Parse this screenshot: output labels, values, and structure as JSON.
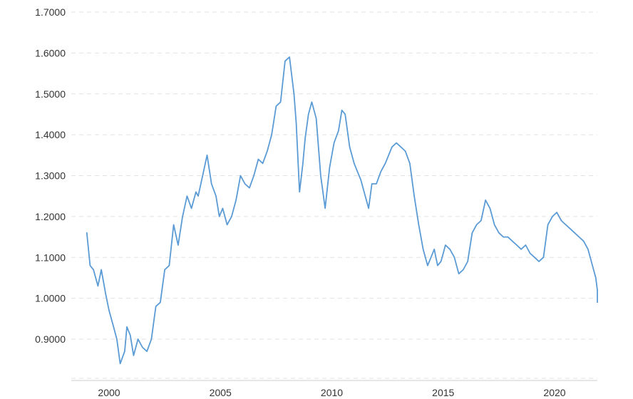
{
  "chart_data": {
    "type": "line",
    "title": "",
    "xlabel": "",
    "ylabel": "",
    "grid": true,
    "legend": "none",
    "x_ticks": [
      "2000",
      "2005",
      "2010",
      "2015",
      "2020"
    ],
    "y_ticks": [
      "0.9000",
      "1.0000",
      "1.1000",
      "1.2000",
      "1.3000",
      "1.4000",
      "1.5000",
      "1.6000",
      "1.7000"
    ],
    "ylim": [
      0.82,
      1.72
    ],
    "xlim": [
      1998.9,
      2022.2
    ],
    "line_color": "#5b9bd5",
    "series": [
      {
        "x": [
          1999.0,
          1999.15,
          1999.3,
          1999.5,
          1999.65,
          1999.85,
          2000.0,
          2000.2,
          2000.35,
          2000.5,
          2000.7,
          2000.8,
          2000.95,
          2001.1,
          2001.3,
          2001.5,
          2001.7,
          2001.9,
          2002.1,
          2002.3,
          2002.5,
          2002.7,
          2002.9,
          2003.1,
          2003.3,
          2003.5,
          2003.7,
          2003.9,
          2004.0,
          2004.2,
          2004.4,
          2004.6,
          2004.8,
          2004.95,
          2005.1,
          2005.3,
          2005.5,
          2005.7,
          2005.9,
          2006.1,
          2006.3,
          2006.5,
          2006.7,
          2006.9,
          2007.1,
          2007.3,
          2007.5,
          2007.7,
          2007.9,
          2008.1,
          2008.3,
          2008.4,
          2008.55,
          2008.7,
          2008.8,
          2008.95,
          2009.1,
          2009.3,
          2009.5,
          2009.7,
          2009.9,
          2010.1,
          2010.3,
          2010.45,
          2010.6,
          2010.8,
          2011.0,
          2011.15,
          2011.3,
          2011.5,
          2011.65,
          2011.8,
          2012.0,
          2012.2,
          2012.4,
          2012.55,
          2012.7,
          2012.9,
          2013.1,
          2013.3,
          2013.5,
          2013.7,
          2013.9,
          2014.1,
          2014.3,
          2014.45,
          2014.6,
          2014.75,
          2014.9,
          2015.0,
          2015.1,
          2015.3,
          2015.5,
          2015.7,
          2015.9,
          2016.1,
          2016.3,
          2016.5,
          2016.7,
          2016.9,
          2017.1,
          2017.3,
          2017.5,
          2017.7,
          2017.9,
          2018.1,
          2018.3,
          2018.5,
          2018.7,
          2018.9,
          2019.1,
          2019.3,
          2019.5,
          2019.7,
          2019.9,
          2020.1,
          2020.3,
          2020.5,
          2020.7,
          2020.9,
          2021.1,
          2021.3,
          2021.5,
          2021.7,
          2021.85,
          2022.0,
          2022.1,
          2022.2
        ],
        "values": [
          1.16,
          1.08,
          1.07,
          1.03,
          1.07,
          1.01,
          0.97,
          0.93,
          0.9,
          0.84,
          0.87,
          0.93,
          0.91,
          0.86,
          0.9,
          0.88,
          0.87,
          0.9,
          0.98,
          0.99,
          1.07,
          1.08,
          1.18,
          1.13,
          1.2,
          1.25,
          1.22,
          1.26,
          1.25,
          1.3,
          1.35,
          1.28,
          1.25,
          1.2,
          1.22,
          1.18,
          1.2,
          1.24,
          1.3,
          1.28,
          1.27,
          1.3,
          1.34,
          1.33,
          1.36,
          1.4,
          1.47,
          1.48,
          1.58,
          1.59,
          1.5,
          1.43,
          1.26,
          1.33,
          1.39,
          1.45,
          1.48,
          1.44,
          1.3,
          1.22,
          1.32,
          1.38,
          1.41,
          1.46,
          1.45,
          1.37,
          1.33,
          1.31,
          1.29,
          1.25,
          1.22,
          1.28,
          1.28,
          1.31,
          1.33,
          1.35,
          1.37,
          1.38,
          1.37,
          1.36,
          1.33,
          1.25,
          1.18,
          1.12,
          1.08,
          1.1,
          1.12,
          1.08,
          1.09,
          1.11,
          1.13,
          1.12,
          1.1,
          1.06,
          1.07,
          1.09,
          1.16,
          1.18,
          1.19,
          1.24,
          1.22,
          1.18,
          1.16,
          1.15,
          1.15,
          1.14,
          1.13,
          1.12,
          1.13,
          1.11,
          1.1,
          1.09,
          1.1,
          1.18,
          1.2,
          1.21,
          1.19,
          1.18,
          1.17,
          1.16,
          1.15,
          1.14,
          1.12,
          1.08,
          1.05,
          1.02,
          1.0,
          0.99
        ]
      }
    ]
  }
}
